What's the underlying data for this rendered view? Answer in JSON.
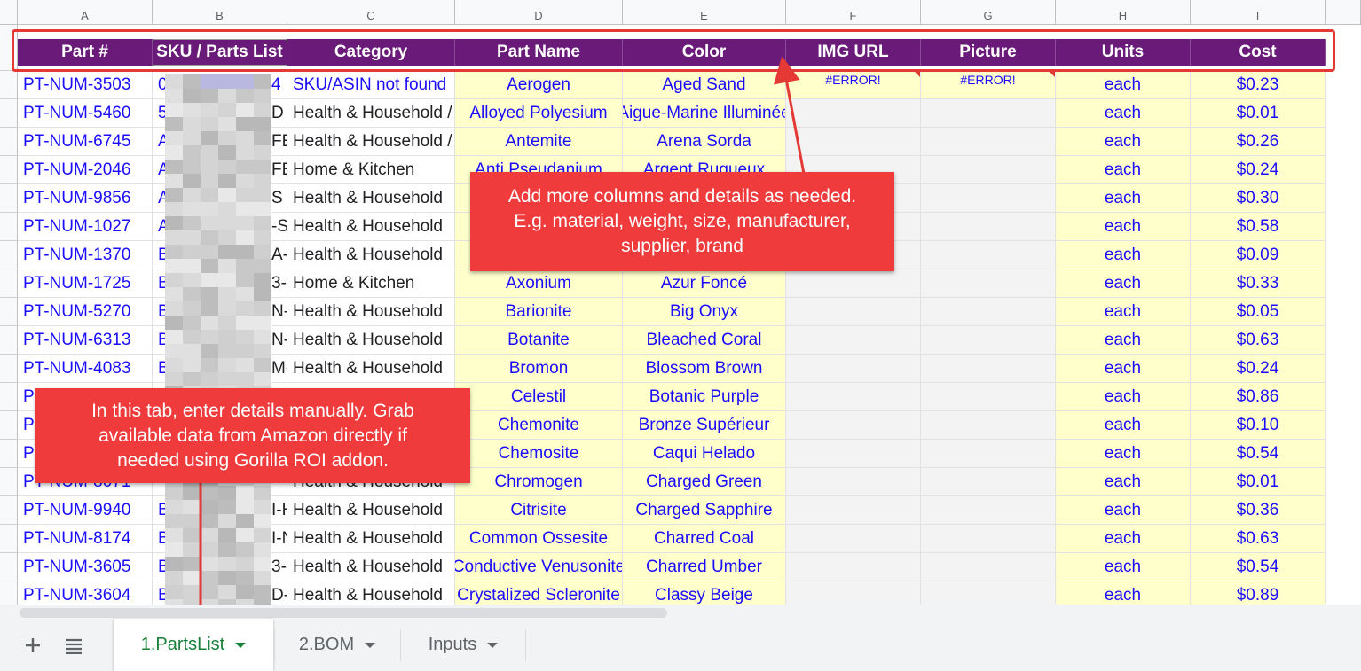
{
  "columns": [
    "A",
    "B",
    "C",
    "D",
    "E",
    "F",
    "G",
    "H",
    "I"
  ],
  "headers": [
    "Part #",
    "SKU / Parts List",
    "Category",
    "Part Name",
    "Color",
    "IMG URL",
    "Picture",
    "Units",
    "Cost"
  ],
  "rows": [
    {
      "part": "PT-NUM-3503",
      "sku_start": "0",
      "sku_end": "4",
      "category": "SKU/ASIN not found",
      "name": "Aerogen",
      "color": "Aged Sand",
      "img": "#ERROR!",
      "pic": "#ERROR!",
      "units": "each",
      "cost": "$0.23"
    },
    {
      "part": "PT-NUM-5460",
      "sku_start": "5",
      "sku_end": "D",
      "category": "Health & Household /",
      "name": "Alloyed Polyesium",
      "color": "Aigue-Marine Illuminée",
      "img": "",
      "pic": "",
      "units": "each",
      "cost": "$0.01"
    },
    {
      "part": "PT-NUM-6745",
      "sku_start": "A",
      "sku_end": "FE",
      "category": "Health & Household /",
      "name": "Antemite",
      "color": "Arena Sorda",
      "img": "",
      "pic": "",
      "units": "each",
      "cost": "$0.26"
    },
    {
      "part": "PT-NUM-2046",
      "sku_start": "A",
      "sku_end": "FE",
      "category": "Home & Kitchen",
      "name": "Anti Pseudanium",
      "color": "Argent Rugueux",
      "img": "",
      "pic": "",
      "units": "each",
      "cost": "$0.24"
    },
    {
      "part": "PT-NUM-9856",
      "sku_start": "A",
      "sku_end": "S",
      "category": "Health & Household",
      "name": "",
      "color": "",
      "img": "",
      "pic": "",
      "units": "each",
      "cost": "$0.30"
    },
    {
      "part": "PT-NUM-1027",
      "sku_start": "A",
      "sku_end": "-S",
      "category": "Health & Household",
      "name": "",
      "color": "",
      "img": "",
      "pic": "",
      "units": "each",
      "cost": "$0.58"
    },
    {
      "part": "PT-NUM-1370",
      "sku_start": "B",
      "sku_end": "A-",
      "category": "Health & Household",
      "name": "",
      "color": "",
      "img": "",
      "pic": "",
      "units": "each",
      "cost": "$0.09"
    },
    {
      "part": "PT-NUM-1725",
      "sku_start": "B",
      "sku_end": "3-D",
      "category": "Home & Kitchen",
      "name": "Axonium",
      "color": "Azur Foncé",
      "img": "",
      "pic": "",
      "units": "each",
      "cost": "$0.33"
    },
    {
      "part": "PT-NUM-5270",
      "sku_start": "B",
      "sku_end": "N-I",
      "category": "Health & Household",
      "name": "Barionite",
      "color": "Big Onyx",
      "img": "",
      "pic": "",
      "units": "each",
      "cost": "$0.05"
    },
    {
      "part": "PT-NUM-6313",
      "sku_start": "B",
      "sku_end": "N-I",
      "category": "Health & Household",
      "name": "Botanite",
      "color": "Bleached Coral",
      "img": "",
      "pic": "",
      "units": "each",
      "cost": "$0.63"
    },
    {
      "part": "PT-NUM-4083",
      "sku_start": "B",
      "sku_end": "M-",
      "category": "Health & Household",
      "name": "Bromon",
      "color": "Blossom Brown",
      "img": "",
      "pic": "",
      "units": "each",
      "cost": "$0.24"
    },
    {
      "part": "P",
      "sku_start": "",
      "sku_end": "",
      "category": "",
      "name": "Celestil",
      "color": "Botanic Purple",
      "img": "",
      "pic": "",
      "units": "each",
      "cost": "$0.86"
    },
    {
      "part": "P",
      "sku_start": "",
      "sku_end": "",
      "category": "",
      "name": "Chemonite",
      "color": "Bronze Supérieur",
      "img": "",
      "pic": "",
      "units": "each",
      "cost": "$0.10"
    },
    {
      "part": "P",
      "sku_start": "",
      "sku_end": "",
      "category": "",
      "name": "Chemosite",
      "color": "Caqui Helado",
      "img": "",
      "pic": "",
      "units": "each",
      "cost": "$0.54"
    },
    {
      "part": "PT-NUM-8071",
      "sku_start": "",
      "sku_end": "",
      "category": "Health & Household",
      "name": "Chromogen",
      "color": "Charged Green",
      "img": "",
      "pic": "",
      "units": "each",
      "cost": "$0.01"
    },
    {
      "part": "PT-NUM-9940",
      "sku_start": "B",
      "sku_end": "I-H",
      "category": "Health & Household",
      "name": "Citrisite",
      "color": "Charged Sapphire",
      "img": "",
      "pic": "",
      "units": "each",
      "cost": "$0.36"
    },
    {
      "part": "PT-NUM-8174",
      "sku_start": "B",
      "sku_end": "I-N",
      "category": "Health & Household",
      "name": "Common Ossesite",
      "color": "Charred Coal",
      "img": "",
      "pic": "",
      "units": "each",
      "cost": "$0.63"
    },
    {
      "part": "PT-NUM-3605",
      "sku_start": "B",
      "sku_end": "3-T",
      "category": "Health & Household",
      "name": "Conductive Venusonite",
      "color": "Charred Umber",
      "img": "",
      "pic": "",
      "units": "each",
      "cost": "$0.54"
    },
    {
      "part": "PT-NUM-3604",
      "sku_start": "B",
      "sku_end": "D-E",
      "category": "Health & Household",
      "name": "Crystalized Scleronite",
      "color": "Classy Beige",
      "img": "",
      "pic": "",
      "units": "each",
      "cost": "$0.89"
    }
  ],
  "callouts": {
    "columns_note": "Add more columns and details as needed.\nE.g. material, weight, size, manufacturer,\nsupplier, brand",
    "tab_note": "In this tab, enter details manually. Grab\navailable data from Amazon directly if\nneeded using Gorilla ROI addon."
  },
  "tabs": [
    {
      "label": "1.PartsList",
      "active": true
    },
    {
      "label": "2.BOM",
      "active": false
    },
    {
      "label": "Inputs",
      "active": false
    }
  ],
  "toolbar": {
    "add_icon": "plus-icon",
    "sheets_icon": "all-sheets-menu-icon"
  },
  "colors": {
    "header_bg": "#6a1b7a",
    "link_text": "#1a0dfc",
    "highlight": "#ffffcc",
    "callout": "#ef3b3b",
    "active_tab": "#188038"
  }
}
